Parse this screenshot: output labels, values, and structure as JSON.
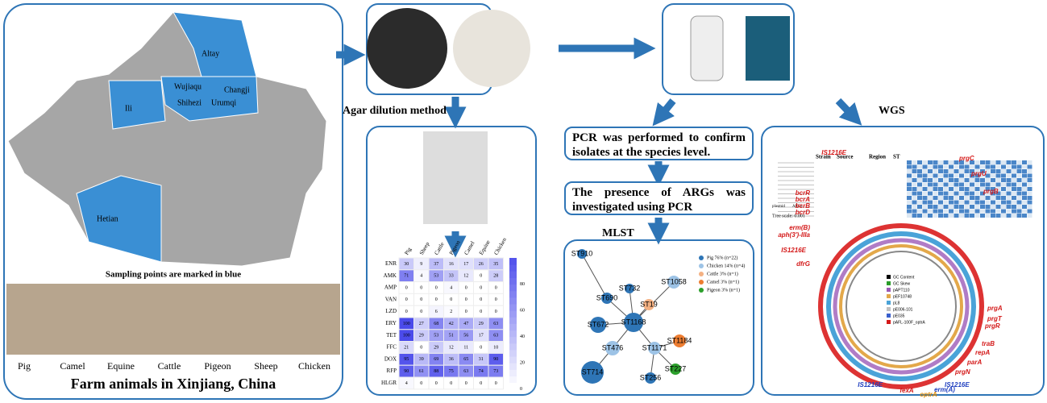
{
  "map": {
    "regions": [
      "Altay",
      "Changji",
      "Wujiaqu",
      "Shihezi",
      "Urumqi",
      "Ili",
      "Hetian"
    ],
    "caption": "Sampling points are marked in blue"
  },
  "animals": {
    "labels": [
      "Pig",
      "Camel",
      "Equine",
      "Cattle",
      "Pigeon",
      "Sheep",
      "Chicken"
    ],
    "title": "Farm animals in Xinjiang, China"
  },
  "agar": {
    "label": "Agar dilution method",
    "heatmap": {
      "columns": [
        "Pig",
        "Sheep",
        "Cattle",
        "Pigeon",
        "Camel",
        "Equine",
        "Chicken"
      ],
      "rows": [
        "ENR",
        "AMK",
        "AMP",
        "VAN",
        "LZD",
        "ERY",
        "TET",
        "FFC",
        "DOX",
        "RFP",
        "HLGR"
      ],
      "values": [
        [
          30,
          9,
          37,
          16,
          17,
          26,
          35
        ],
        [
          71,
          4,
          53,
          33,
          12,
          0,
          28
        ],
        [
          0,
          0,
          0,
          4,
          0,
          0,
          0
        ],
        [
          0,
          0,
          0,
          0,
          0,
          0,
          0
        ],
        [
          0,
          0,
          6,
          2,
          0,
          0,
          0
        ],
        [
          100,
          27,
          68,
          42,
          47,
          29,
          63
        ],
        [
          100,
          29,
          53,
          51,
          56,
          17,
          63
        ],
        [
          21,
          0,
          29,
          12,
          11,
          0,
          10
        ],
        [
          95,
          39,
          69,
          36,
          65,
          31,
          90
        ],
        [
          90,
          61,
          88,
          75,
          63,
          74,
          73
        ],
        [
          4,
          0,
          0,
          0,
          0,
          0,
          0
        ]
      ],
      "colorbar_range": [
        0,
        100
      ],
      "colorbar_ticks": [
        0,
        20,
        40,
        60,
        80
      ]
    }
  },
  "pcr": {
    "species": "PCR was performed to confirm isolates at the species level.",
    "args": "The presence of ARGs was investigated using PCR"
  },
  "mlst": {
    "title": "MLST",
    "legend": [
      "Pig 76% (n=22)",
      "Chicken 14% (n=4)",
      "Cattle 3% (n=1)",
      "Camel 3% (n=1)",
      "Pigeon 3% (n=1)"
    ],
    "nodes": [
      "ST910",
      "ST690",
      "ST732",
      "ST1058",
      "ST19",
      "ST672",
      "ST1168",
      "ST476",
      "ST1171",
      "ST1184",
      "ST227",
      "ST714",
      "ST256"
    ]
  },
  "wgs": {
    "title": "WGS",
    "tree_headers": [
      "Strain",
      "Source",
      "Region",
      "ST"
    ],
    "tree_labels": [
      "plasmid",
      "ARGs"
    ],
    "tree_scale": "Tree scale: 0.001",
    "genes": [
      "IS1216E",
      "prgC",
      "prgU",
      "prgB",
      "bcrR",
      "bcrA",
      "bcrB",
      "bcrD",
      "erm(B)",
      "aph(3')-IIIa",
      "IS1216E",
      "dfrG",
      "prgA",
      "prgT",
      "prgR",
      "traB",
      "repA",
      "parA",
      "prgN",
      "IS1216E",
      "fexA",
      "optrA",
      "erm(A)",
      "IS1216E"
    ],
    "ring_legend": [
      "GC Content",
      "GC Skew",
      "pAPT110",
      "pEF10748",
      "pL8",
      "pE006-101",
      "pE035",
      "pAFL-100F_optrA"
    ]
  }
}
